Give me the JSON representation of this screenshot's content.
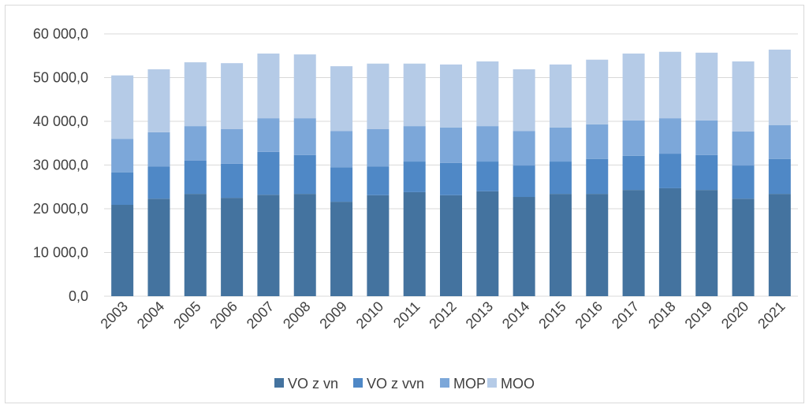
{
  "chart_data": {
    "type": "bar",
    "stacked": true,
    "categories": [
      "2003",
      "2004",
      "2005",
      "2006",
      "2007",
      "2008",
      "2009",
      "2010",
      "2011",
      "2012",
      "2013",
      "2014",
      "2015",
      "2016",
      "2017",
      "2018",
      "2019",
      "2020",
      "2021"
    ],
    "series": [
      {
        "name": "VO z vn",
        "color": "#44739f",
        "values": [
          20900,
          22300,
          23400,
          22500,
          23200,
          23400,
          21600,
          23100,
          23800,
          23100,
          24000,
          22700,
          23400,
          23400,
          24300,
          24700,
          24300,
          22300,
          23400
        ]
      },
      {
        "name": "VO z vvn",
        "color": "#4f88c6",
        "values": [
          7400,
          7400,
          7600,
          7800,
          9800,
          8900,
          7900,
          6600,
          7000,
          7400,
          6800,
          7200,
          7400,
          8000,
          7800,
          7900,
          8000,
          7600,
          8000
        ]
      },
      {
        "name": "MOP",
        "color": "#7ca7d9",
        "values": [
          7700,
          7800,
          7900,
          7900,
          7700,
          8400,
          8300,
          8500,
          8100,
          8100,
          8100,
          7900,
          7800,
          7900,
          8100,
          8100,
          7900,
          7800,
          7700
        ]
      },
      {
        "name": "MOO",
        "color": "#b5cbe7",
        "values": [
          14500,
          14400,
          14600,
          15100,
          14800,
          14600,
          14800,
          15000,
          14300,
          14400,
          14800,
          14100,
          14400,
          14800,
          15300,
          15200,
          15500,
          16000,
          17300
        ]
      }
    ],
    "ylim": [
      0,
      60000
    ],
    "yticks": [
      {
        "value": 0,
        "label": "0,0"
      },
      {
        "value": 10000,
        "label": "10 000,0"
      },
      {
        "value": 20000,
        "label": "20 000,0"
      },
      {
        "value": 30000,
        "label": "30 000,0"
      },
      {
        "value": 40000,
        "label": "40 000,0"
      },
      {
        "value": 50000,
        "label": "50 000,0"
      },
      {
        "value": 60000,
        "label": "60 000,0"
      }
    ],
    "grid": true,
    "legend": "bottom"
  }
}
